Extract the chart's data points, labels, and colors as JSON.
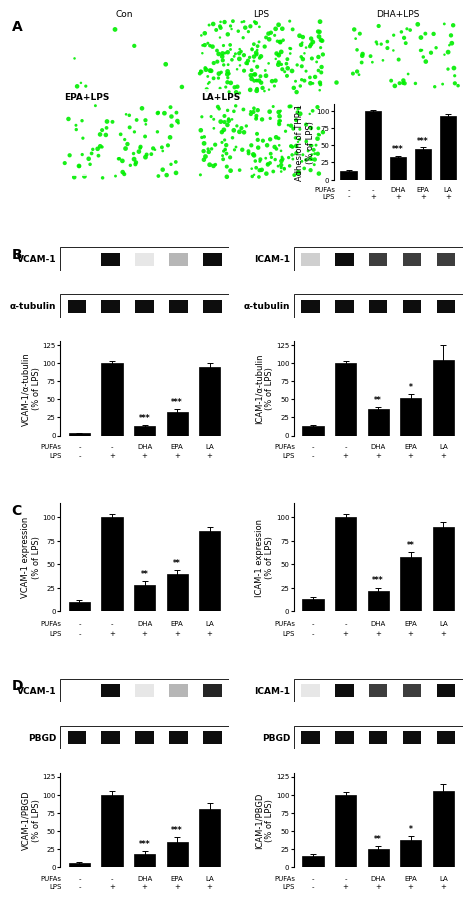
{
  "panel_A": {
    "bar_values": [
      12,
      100,
      33,
      45,
      93
    ],
    "bar_errors": [
      2,
      2,
      2,
      2,
      2
    ],
    "bar_color": "#000000",
    "ylabel": "Adhesion of THP-1\n(% of LPS)",
    "ylim": [
      0,
      110
    ],
    "yticks": [
      0,
      25,
      50,
      75,
      100
    ],
    "sig_labels": [
      "",
      "",
      "***",
      "***",
      ""
    ],
    "pufa_labels": [
      "-",
      "-",
      "DHA",
      "EPA",
      "LA"
    ],
    "lps_labels": [
      "-",
      "+",
      "+",
      "+",
      "+"
    ],
    "image_cells": [
      8,
      200,
      60,
      80,
      180
    ],
    "image_labels": [
      "Con",
      "LPS",
      "DHA+LPS",
      "EPA+LPS",
      "LA+LPS"
    ]
  },
  "panel_B_left": {
    "bar_values": [
      3,
      100,
      13,
      33,
      95
    ],
    "bar_errors": [
      1,
      3,
      2,
      4,
      5
    ],
    "bar_color": "#000000",
    "ylabel": "VCAM-1/α-tubulin\n(% of LPS)",
    "ylim": [
      0,
      130
    ],
    "yticks": [
      0,
      25,
      50,
      75,
      100,
      125
    ],
    "sig_labels": [
      "",
      "",
      "***",
      "***",
      ""
    ],
    "pufa_labels": [
      "-",
      "-",
      "DHA",
      "EPA",
      "LA"
    ],
    "lps_labels": [
      "-",
      "+",
      "+",
      "+",
      "+"
    ],
    "row1_label": "VCAM-1",
    "row2_label": "α-tubulin",
    "blot_intensities": [
      0.0,
      1.0,
      0.1,
      0.3,
      1.0
    ],
    "load_intensities": [
      1.0,
      1.0,
      1.0,
      1.0,
      1.0
    ]
  },
  "panel_B_right": {
    "bar_values": [
      13,
      100,
      36,
      52,
      105
    ],
    "bar_errors": [
      2,
      3,
      4,
      6,
      20
    ],
    "bar_color": "#000000",
    "ylabel": "ICAM-1/α-tubulin\n(% of LPS)",
    "ylim": [
      0,
      130
    ],
    "yticks": [
      0,
      25,
      50,
      75,
      100,
      125
    ],
    "sig_labels": [
      "",
      "",
      "**",
      "*",
      ""
    ],
    "pufa_labels": [
      "-",
      "-",
      "DHA",
      "EPA",
      "LA"
    ],
    "lps_labels": [
      "-",
      "+",
      "+",
      "+",
      "+"
    ],
    "row1_label": "ICAM-1",
    "row2_label": "α-tubulin",
    "blot_intensities": [
      0.2,
      1.0,
      0.8,
      0.8,
      0.8
    ],
    "load_intensities": [
      1.0,
      1.0,
      1.0,
      1.0,
      1.0
    ]
  },
  "panel_C_left": {
    "bar_values": [
      10,
      100,
      28,
      40,
      85
    ],
    "bar_errors": [
      2,
      3,
      4,
      4,
      5
    ],
    "bar_color": "#000000",
    "ylabel": "VCAM-1 expression\n(% of LPS)",
    "ylim": [
      0,
      115
    ],
    "yticks": [
      0,
      25,
      50,
      75,
      100
    ],
    "sig_labels": [
      "",
      "",
      "**",
      "**",
      ""
    ],
    "pufa_labels": [
      "-",
      "-",
      "DHA",
      "EPA",
      "LA"
    ],
    "lps_labels": [
      "-",
      "+",
      "+",
      "+",
      "+"
    ]
  },
  "panel_C_right": {
    "bar_values": [
      13,
      100,
      22,
      58,
      90
    ],
    "bar_errors": [
      2,
      3,
      3,
      5,
      5
    ],
    "bar_color": "#000000",
    "ylabel": "ICAM-1 expression\n(% of LPS)",
    "ylim": [
      0,
      115
    ],
    "yticks": [
      0,
      25,
      50,
      75,
      100
    ],
    "sig_labels": [
      "",
      "",
      "***",
      "**",
      ""
    ],
    "pufa_labels": [
      "-",
      "-",
      "DHA",
      "EPA",
      "LA"
    ],
    "lps_labels": [
      "-",
      "+",
      "+",
      "+",
      "+"
    ]
  },
  "panel_D_left": {
    "bar_values": [
      5,
      100,
      18,
      35,
      80
    ],
    "bar_errors": [
      2,
      5,
      4,
      6,
      8
    ],
    "bar_color": "#000000",
    "ylabel": "VCAM-1/PBGD\n(% of LPS)",
    "ylim": [
      0,
      130
    ],
    "yticks": [
      0,
      25,
      50,
      75,
      100,
      125
    ],
    "sig_labels": [
      "",
      "",
      "***",
      "***",
      ""
    ],
    "pufa_labels": [
      "-",
      "-",
      "DHA",
      "EPA",
      "LA"
    ],
    "lps_labels": [
      "-",
      "+",
      "+",
      "+",
      "+"
    ],
    "row1_label": "VCAM-1",
    "row2_label": "PBGD",
    "blot_intensities": [
      0.0,
      1.0,
      0.1,
      0.3,
      0.9
    ],
    "load_intensities": [
      1.0,
      1.0,
      1.0,
      1.0,
      1.0
    ]
  },
  "panel_D_right": {
    "bar_values": [
      15,
      100,
      25,
      38,
      105
    ],
    "bar_errors": [
      3,
      4,
      4,
      5,
      10
    ],
    "bar_color": "#000000",
    "ylabel": "ICAM-1/PBGD\n(% of LPS)",
    "ylim": [
      0,
      130
    ],
    "yticks": [
      0,
      25,
      50,
      75,
      100,
      125
    ],
    "sig_labels": [
      "",
      "",
      "**",
      "*",
      ""
    ],
    "pufa_labels": [
      "-",
      "-",
      "DHA",
      "EPA",
      "LA"
    ],
    "lps_labels": [
      "-",
      "+",
      "+",
      "+",
      "+"
    ],
    "row1_label": "ICAM-1",
    "row2_label": "PBGD",
    "blot_intensities": [
      0.1,
      1.0,
      0.8,
      0.8,
      1.0
    ],
    "load_intensities": [
      1.0,
      1.0,
      1.0,
      1.0,
      1.0
    ]
  },
  "blot_bg": "#c8c8c8",
  "gel_bg": "#d8d8d8",
  "figure_bg": "#ffffff",
  "bar_width": 0.65
}
